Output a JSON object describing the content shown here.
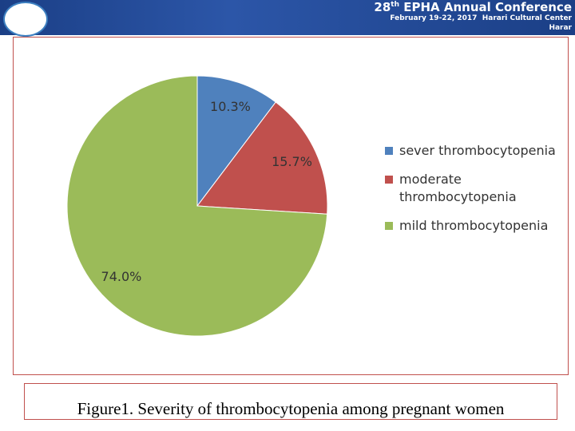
{
  "header": {
    "number": "28",
    "suffix": "th",
    "title": "EPHA Annual Conference",
    "dates": "February 19-22, 2017",
    "venue": "Harari Cultural Center",
    "city": "Harar"
  },
  "chart_data": {
    "type": "pie",
    "categories": [
      "sever thrombocytopenia",
      "moderate thrombocytopenia",
      "mild thrombocytopenia"
    ],
    "values": [
      10.3,
      15.7,
      74.0
    ],
    "value_labels": [
      "10.3%",
      "15.7%",
      "74.0%"
    ],
    "colors": [
      "#4f81bd",
      "#c0504d",
      "#9bbb59"
    ],
    "legend": "right"
  },
  "caption": "Figure1. Severity of thrombocytopenia among pregnant women"
}
